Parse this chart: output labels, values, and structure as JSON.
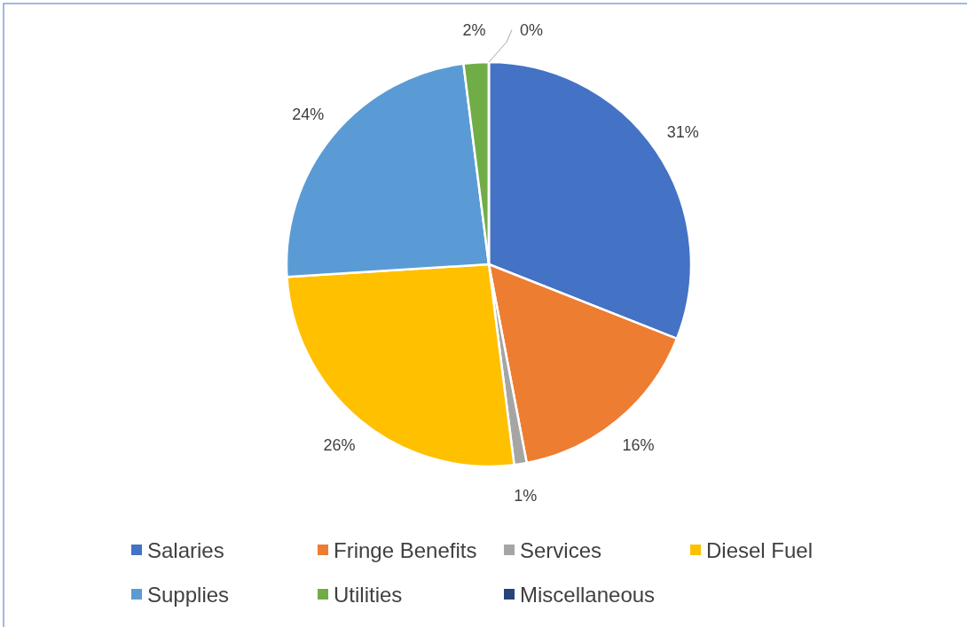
{
  "chart_data": {
    "type": "pie",
    "categories": [
      "Salaries",
      "Fringe Benefits",
      "Services",
      "Diesel Fuel",
      "Supplies",
      "Utilities",
      "Miscellaneous"
    ],
    "values": [
      31,
      16,
      1,
      26,
      24,
      2,
      0
    ],
    "colors": [
      "#4472c4",
      "#ed7d31",
      "#a5a5a5",
      "#ffc000",
      "#5b9bd5",
      "#70ad47",
      "#264478"
    ],
    "value_labels": [
      "31%",
      "16%",
      "1%",
      "26%",
      "24%",
      "2%",
      "0%"
    ],
    "legend": "bottom"
  }
}
